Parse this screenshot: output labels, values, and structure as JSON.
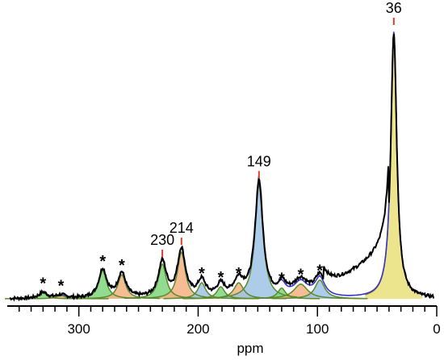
{
  "chart_data": {
    "type": "line",
    "title": "",
    "xlabel": "ppm",
    "ylabel": "",
    "xlim": [
      360,
      0
    ],
    "ylim": [
      0,
      1.0
    ],
    "reversed_x": true,
    "grid": false,
    "x_ticks": [
      300,
      200,
      100,
      0
    ],
    "x_tick_labels": [
      "300",
      "200",
      "100",
      "0"
    ],
    "components": [
      {
        "center": 330,
        "height": 0.022,
        "width": 4,
        "color": "#7fd67f"
      },
      {
        "center": 315,
        "height": 0.012,
        "width": 5,
        "color": "#f4b183"
      },
      {
        "center": 280,
        "height": 0.105,
        "width": 4,
        "color": "#7fd67f"
      },
      {
        "center": 264,
        "height": 0.09,
        "width": 4,
        "color": "#f4b183"
      },
      {
        "center": 230,
        "height": 0.13,
        "width": 4,
        "color": "#7fd67f"
      },
      {
        "center": 214,
        "height": 0.175,
        "width": 4,
        "color": "#f4b183"
      },
      {
        "center": 197,
        "height": 0.06,
        "width": 4,
        "color": "#9dc3e6"
      },
      {
        "center": 181,
        "height": 0.045,
        "width": 4,
        "color": "#7fd67f"
      },
      {
        "center": 166,
        "height": 0.06,
        "width": 5,
        "color": "#f4b183"
      },
      {
        "center": 149,
        "height": 0.425,
        "width": 4,
        "color": "#9dc3e6"
      },
      {
        "center": 130,
        "height": 0.04,
        "width": 4,
        "color": "#7fd67f"
      },
      {
        "center": 114,
        "height": 0.055,
        "width": 7,
        "color": "#f4b183"
      },
      {
        "center": 98,
        "height": 0.07,
        "width": 5,
        "color": "#9dc3e6"
      },
      {
        "center": 36,
        "height": 1.0,
        "width": 3,
        "color": "#e9e07a"
      }
    ],
    "peak_labels": [
      {
        "x": 36,
        "text": "36"
      },
      {
        "x": 149,
        "text": "149"
      },
      {
        "x": 214,
        "text": "214"
      },
      {
        "x": 230,
        "text": "230"
      }
    ],
    "sidebands": [
      330,
      315,
      280,
      264,
      197,
      181,
      166,
      130,
      114,
      98
    ],
    "sideband_symbol": "*"
  }
}
